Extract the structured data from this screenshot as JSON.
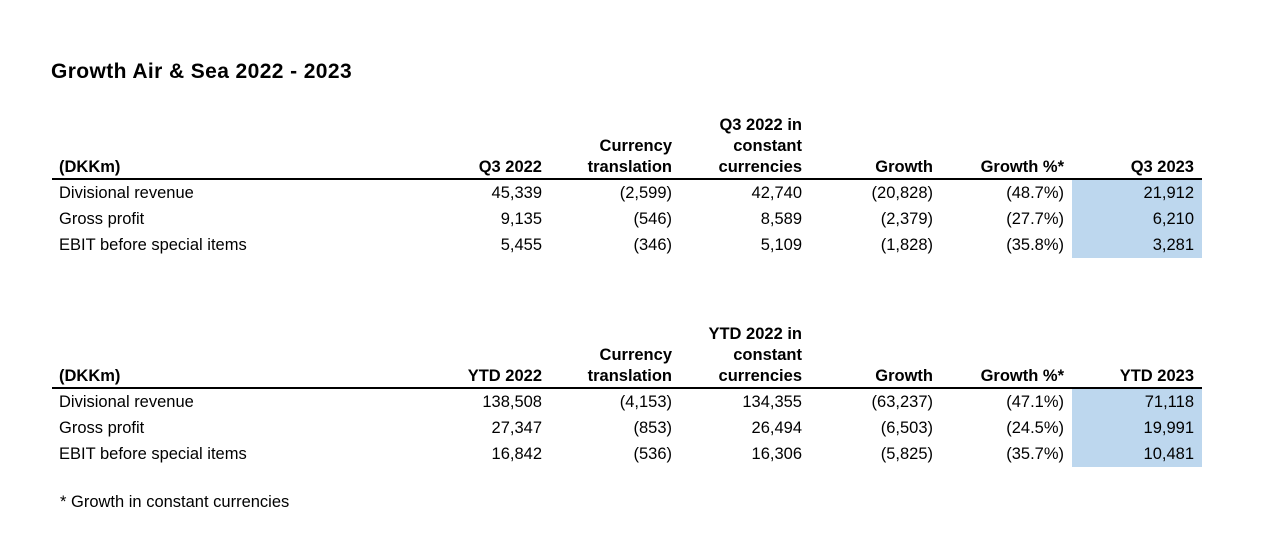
{
  "title": "Growth Air & Sea 2022 - 2023",
  "tables": [
    {
      "headers": [
        "(DKKm)",
        "Q3 2022",
        "Currency translation",
        "Q3 2022 in constant currencies",
        "Growth",
        "Growth %*",
        "Q3 2023"
      ],
      "rows": [
        {
          "label": "Divisional revenue",
          "values": [
            "45,339",
            "(2,599)",
            "42,740",
            "(20,828)",
            "(48.7%)",
            "21,912"
          ]
        },
        {
          "label": "Gross profit",
          "values": [
            "9,135",
            "(546)",
            "8,589",
            "(2,379)",
            "(27.7%)",
            "6,210"
          ]
        },
        {
          "label": "EBIT before special items",
          "values": [
            "5,455",
            "(346)",
            "5,109",
            "(1,828)",
            "(35.8%)",
            "3,281"
          ]
        }
      ]
    },
    {
      "headers": [
        "(DKKm)",
        "YTD 2022",
        "Currency translation",
        "YTD 2022 in constant currencies",
        "Growth",
        "Growth %*",
        "YTD 2023"
      ],
      "rows": [
        {
          "label": "Divisional revenue",
          "values": [
            "138,508",
            "(4,153)",
            "134,355",
            "(63,237)",
            "(47.1%)",
            "71,118"
          ]
        },
        {
          "label": "Gross profit",
          "values": [
            "27,347",
            "(853)",
            "26,494",
            "(6,503)",
            "(24.5%)",
            "19,991"
          ]
        },
        {
          "label": "EBIT before special items",
          "values": [
            "16,842",
            "(536)",
            "16,306",
            "(5,825)",
            "(35.7%)",
            "10,481"
          ]
        }
      ]
    }
  ],
  "footnote": "* Growth in constant currencies",
  "colors": {
    "highlight": "#bdd7ee"
  }
}
